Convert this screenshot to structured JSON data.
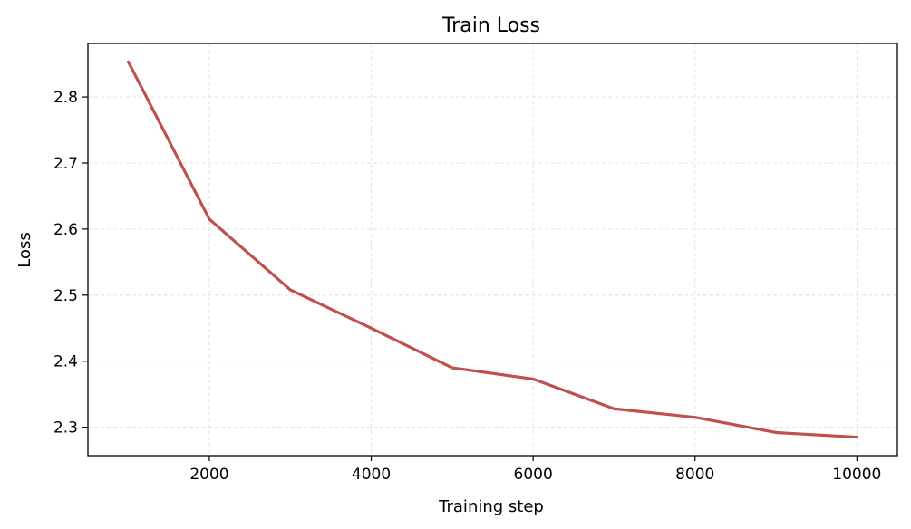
{
  "chart_data": {
    "type": "line",
    "title": "Train Loss",
    "xlabel": "Training step",
    "ylabel": "Loss",
    "x": [
      1000,
      2000,
      3000,
      4000,
      5000,
      6000,
      7000,
      8000,
      9000,
      10000
    ],
    "series": [
      {
        "values": [
          2.853,
          2.615,
          2.508,
          2.45,
          2.39,
          2.373,
          2.328,
          2.315,
          2.292,
          2.285
        ],
        "color": "#c0504d"
      }
    ],
    "xlim": [
      500,
      10500
    ],
    "ylim": [
      2.257,
      2.881
    ],
    "xticks": [
      2000,
      4000,
      6000,
      8000,
      10000
    ],
    "yticks": [
      2.3,
      2.4,
      2.5,
      2.6,
      2.7,
      2.8
    ],
    "grid": true,
    "legend": "none"
  }
}
